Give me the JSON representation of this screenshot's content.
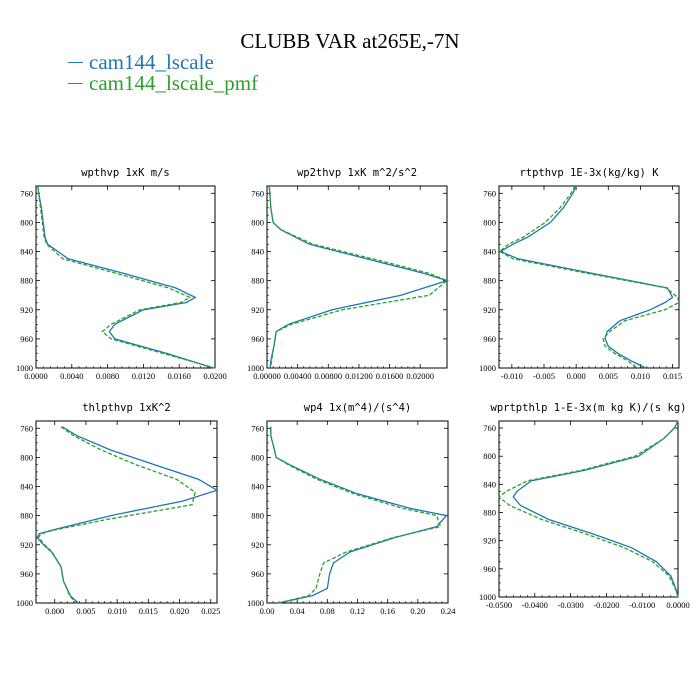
{
  "figure": {
    "title": "CLUBB VAR at265E,-7N",
    "legend": [
      {
        "name": "cam144_lscale",
        "color": "#1f77b4"
      },
      {
        "name": "cam144_lscale_pmf",
        "color": "#2ca02c"
      }
    ]
  },
  "chart_data": [
    {
      "type": "line",
      "title": "wpthvp  1xK m/s",
      "xlim": [
        0,
        0.02
      ],
      "ylim": [
        1000,
        750
      ],
      "xticks": [
        0.0,
        0.004,
        0.008,
        0.012,
        0.016,
        0.02
      ],
      "xtick_labels": [
        "0.0000",
        "0.0040",
        "0.0080",
        "0.0120",
        "0.0160",
        "0.0200"
      ],
      "yticks": [
        760,
        800,
        840,
        880,
        920,
        960,
        1000
      ],
      "ytick_labels": [
        "760",
        "800",
        "840",
        "880",
        "920",
        "960",
        "1000"
      ],
      "series": [
        {
          "name": "cam144_lscale",
          "y": [
            750,
            760,
            780,
            800,
            820,
            830,
            850,
            870,
            890,
            903,
            910,
            920,
            940,
            950,
            960,
            980,
            1000
          ],
          "x": [
            0.0002,
            0.0003,
            0.0006,
            0.0008,
            0.001,
            0.0013,
            0.0036,
            0.0098,
            0.0156,
            0.0178,
            0.0168,
            0.012,
            0.0088,
            0.0082,
            0.0088,
            0.0146,
            0.0198
          ]
        },
        {
          "name": "cam144_lscale_pmf",
          "y": [
            750,
            760,
            780,
            800,
            820,
            830,
            850,
            870,
            890,
            903,
            910,
            920,
            940,
            950,
            960,
            980,
            1000
          ],
          "x": [
            0.0002,
            0.0003,
            0.0005,
            0.0007,
            0.0009,
            0.0012,
            0.003,
            0.009,
            0.0148,
            0.0172,
            0.0162,
            0.0116,
            0.0084,
            0.0074,
            0.0084,
            0.0142,
            0.02
          ]
        }
      ]
    },
    {
      "type": "line",
      "title": "wp2thvp  1xK m^2/s^2",
      "xlim": [
        0,
        0.0235
      ],
      "ylim": [
        1000,
        750
      ],
      "xticks": [
        0.0,
        0.004,
        0.008,
        0.012,
        0.016,
        0.02
      ],
      "xtick_labels": [
        "0.00000",
        "0.00400",
        "0.00800",
        "0.01200",
        "0.01600",
        "0.02000"
      ],
      "yticks": [
        760,
        800,
        840,
        880,
        920,
        960,
        1000
      ],
      "ytick_labels": [
        "760",
        "800",
        "840",
        "880",
        "920",
        "960",
        "1000"
      ],
      "series": [
        {
          "name": "cam144_lscale",
          "y": [
            750,
            780,
            800,
            810,
            830,
            850,
            870,
            880,
            900,
            920,
            940,
            950,
            970,
            990,
            1000
          ],
          "x": [
            0.0003,
            0.0005,
            0.0008,
            0.0018,
            0.0055,
            0.013,
            0.0205,
            0.0235,
            0.0175,
            0.0085,
            0.0028,
            0.0012,
            0.0009,
            0.0005,
            0.0004
          ]
        },
        {
          "name": "cam144_lscale_pmf",
          "y": [
            750,
            780,
            800,
            810,
            830,
            850,
            870,
            880,
            900,
            920,
            940,
            950,
            970,
            990,
            1000
          ],
          "x": [
            0.0003,
            0.0005,
            0.0008,
            0.0018,
            0.006,
            0.0138,
            0.0212,
            0.0235,
            0.0212,
            0.0098,
            0.0032,
            0.0012,
            0.0009,
            0.0006,
            0.0005
          ]
        }
      ]
    },
    {
      "type": "line",
      "title": "rtpthvp  1E-3x(kg/kg) K",
      "xlim": [
        -0.012,
        0.016
      ],
      "ylim": [
        1000,
        750
      ],
      "xticks": [
        -0.01,
        -0.005,
        0.0,
        0.005,
        0.01,
        0.015
      ],
      "xtick_labels": [
        "-0.010",
        "-0.005",
        "0.000",
        "0.005",
        "0.010",
        "0.015"
      ],
      "yticks": [
        760,
        800,
        840,
        880,
        920,
        960,
        1000
      ],
      "ytick_labels": [
        "760",
        "800",
        "840",
        "880",
        "920",
        "960",
        "1000"
      ],
      "series": [
        {
          "name": "cam144_lscale",
          "y": [
            750,
            760,
            780,
            800,
            820,
            830,
            840,
            850,
            870,
            890,
            903,
            910,
            920,
            935,
            950,
            960,
            970,
            980,
            990,
            1000
          ],
          "x": [
            0.0,
            -0.0005,
            -0.002,
            -0.004,
            -0.0075,
            -0.0098,
            -0.0118,
            -0.009,
            0.0025,
            0.0142,
            0.015,
            0.0138,
            0.0115,
            0.0068,
            0.0048,
            0.0045,
            0.005,
            0.0065,
            0.0085,
            0.0108
          ]
        },
        {
          "name": "cam144_lscale_pmf",
          "y": [
            750,
            760,
            780,
            800,
            820,
            830,
            840,
            850,
            870,
            890,
            903,
            910,
            920,
            935,
            950,
            960,
            970,
            980,
            990,
            1000
          ],
          "x": [
            -0.0002,
            -0.0008,
            -0.0025,
            -0.0048,
            -0.0082,
            -0.0105,
            -0.0119,
            -0.0098,
            0.0018,
            0.014,
            0.0158,
            0.0162,
            0.0138,
            0.0076,
            0.0052,
            0.0042,
            0.0045,
            0.006,
            0.008,
            0.0095
          ]
        }
      ]
    },
    {
      "type": "line",
      "title": "thlpthvp  1xK^2",
      "xlim": [
        -0.003,
        0.026
      ],
      "ylim": [
        1000,
        750
      ],
      "xticks": [
        0.0,
        0.005,
        0.01,
        0.015,
        0.02,
        0.025
      ],
      "xtick_labels": [
        "0.000",
        "0.005",
        "0.010",
        "0.015",
        "0.020",
        "0.025"
      ],
      "yticks": [
        760,
        800,
        840,
        880,
        920,
        960,
        1000
      ],
      "ytick_labels": [
        "760",
        "800",
        "840",
        "880",
        "920",
        "960",
        "1000"
      ],
      "series": [
        {
          "name": "cam144_lscale",
          "y": [
            758,
            770,
            790,
            810,
            830,
            845,
            860,
            880,
            900,
            905,
            910,
            920,
            930,
            950,
            970,
            990,
            1000
          ],
          "x": [
            0.0012,
            0.0035,
            0.009,
            0.016,
            0.023,
            0.026,
            0.0205,
            0.009,
            -0.0005,
            -0.0025,
            -0.0028,
            -0.0018,
            -0.0005,
            0.001,
            0.0014,
            0.0025,
            0.0038
          ]
        },
        {
          "name": "cam144_lscale_pmf",
          "y": [
            758,
            770,
            790,
            810,
            830,
            848,
            865,
            885,
            900,
            905,
            910,
            920,
            930,
            950,
            970,
            990,
            1000
          ],
          "x": [
            0.001,
            0.003,
            0.0075,
            0.013,
            0.0195,
            0.0225,
            0.022,
            0.0085,
            -0.0002,
            -0.0022,
            -0.0026,
            -0.0016,
            -0.0004,
            0.001,
            0.0014,
            0.0024,
            0.0034
          ]
        }
      ]
    },
    {
      "type": "line",
      "title": "wp4  1x(m^4)/(s^4)",
      "xlim": [
        0,
        0.24
      ],
      "ylim": [
        1000,
        750
      ],
      "xticks": [
        0.0,
        0.04,
        0.08,
        0.12,
        0.16,
        0.2,
        0.24
      ],
      "xtick_labels": [
        "0.00",
        "0.04",
        "0.08",
        "0.12",
        "0.16",
        "0.20",
        "0.24"
      ],
      "yticks": [
        760,
        800,
        840,
        880,
        920,
        960,
        1000
      ],
      "ytick_labels": [
        "760",
        "800",
        "840",
        "880",
        "920",
        "960",
        "1000"
      ],
      "series": [
        {
          "name": "cam144_lscale",
          "y": [
            758,
            770,
            790,
            800,
            810,
            830,
            850,
            870,
            880,
            895,
            910,
            930,
            945,
            960,
            980,
            990,
            1000
          ],
          "x": [
            0.005,
            0.005,
            0.01,
            0.012,
            0.03,
            0.07,
            0.12,
            0.19,
            0.238,
            0.225,
            0.17,
            0.11,
            0.088,
            0.083,
            0.08,
            0.06,
            0.015
          ]
        },
        {
          "name": "cam144_lscale_pmf",
          "y": [
            758,
            770,
            790,
            800,
            810,
            830,
            850,
            870,
            880,
            895,
            910,
            930,
            945,
            960,
            980,
            990,
            1000
          ],
          "x": [
            0.005,
            0.005,
            0.01,
            0.012,
            0.028,
            0.066,
            0.115,
            0.18,
            0.225,
            0.23,
            0.168,
            0.105,
            0.075,
            0.07,
            0.065,
            0.055,
            0.015
          ]
        }
      ]
    },
    {
      "type": "line",
      "title": "wprtpthlp  1-E-3x(m kg K)/(s kg)",
      "xlim": [
        -0.05,
        0.0
      ],
      "ylim": [
        1000,
        750
      ],
      "xticks": [
        -0.05,
        -0.04,
        -0.03,
        -0.02,
        -0.01,
        0.0
      ],
      "xtick_labels": [
        "-0.0500",
        "-0.0400",
        "-0.0300",
        "-0.0200",
        "-0.0100",
        "0.0000"
      ],
      "yticks": [
        760,
        800,
        840,
        880,
        920,
        960,
        1000
      ],
      "ytick_labels": [
        "760",
        "800",
        "840",
        "880",
        "920",
        "960",
        "1000"
      ],
      "series": [
        {
          "name": "cam144_lscale",
          "y": [
            750,
            760,
            775,
            800,
            820,
            835,
            850,
            858,
            870,
            890,
            910,
            930,
            950,
            970,
            990,
            1000
          ],
          "x": [
            0.0,
            -0.001,
            -0.004,
            -0.011,
            -0.026,
            -0.041,
            -0.045,
            -0.046,
            -0.044,
            -0.036,
            -0.024,
            -0.013,
            -0.006,
            -0.002,
            -0.0005,
            0.0
          ]
        },
        {
          "name": "cam144_lscale_pmf",
          "y": [
            750,
            760,
            775,
            800,
            820,
            835,
            850,
            858,
            870,
            890,
            910,
            930,
            950,
            970,
            990,
            1000
          ],
          "x": [
            0.0,
            -0.001,
            -0.004,
            -0.012,
            -0.027,
            -0.042,
            -0.048,
            -0.05,
            -0.047,
            -0.038,
            -0.026,
            -0.015,
            -0.007,
            -0.0025,
            -0.0006,
            0.0
          ]
        }
      ]
    }
  ]
}
